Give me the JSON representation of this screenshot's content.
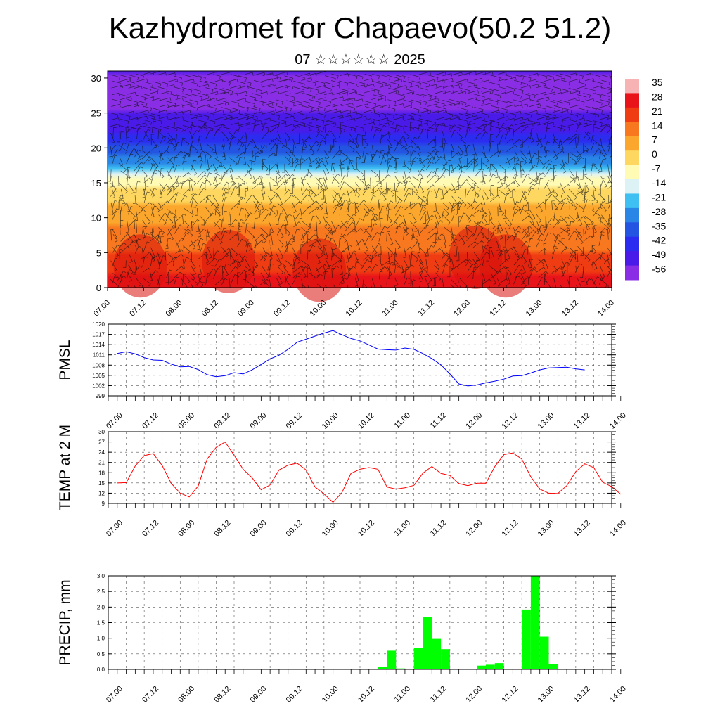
{
  "title": "Kazhydromet for Chapaevo(50.2 51.2)",
  "subtitle": "07 ☆☆☆☆☆☆ 2025",
  "chart_data": [
    {
      "type": "heatmap",
      "xlabel": "",
      "ylabel": "",
      "ylim": [
        0,
        31
      ],
      "yticks": [
        0,
        5,
        10,
        15,
        20,
        25,
        30
      ],
      "xtick_labels": [
        "07.00",
        "07.12",
        "08.00",
        "08.12",
        "09.00",
        "09.12",
        "10.00",
        "10.12",
        "11.00",
        "11.12",
        "12.00",
        "12.12",
        "13.00",
        "13.12",
        "14.00"
      ],
      "colorbar": {
        "labels": [
          "35",
          "28",
          "21",
          "14",
          "7",
          "0",
          "-7",
          "-14",
          "-21",
          "-28",
          "-35",
          "-42",
          "-49",
          "-56"
        ],
        "colors": [
          "#f7b3b3",
          "#e8141a",
          "#f03c12",
          "#f7781e",
          "#fba62c",
          "#fdd760",
          "#fffbb4",
          "#ddf2f5",
          "#3fc0f2",
          "#2a86e6",
          "#2454e2",
          "#2c2cf0",
          "#4a1ae8",
          "#8a2ee6"
        ]
      },
      "temperature_profile_by_level": [
        {
          "level": 0,
          "temp": 28
        },
        {
          "level": 5,
          "temp": 18
        },
        {
          "level": 10,
          "temp": 8
        },
        {
          "level": 15,
          "temp": -5
        },
        {
          "level": 17,
          "temp": -22
        },
        {
          "level": 20,
          "temp": -35
        },
        {
          "level": 23,
          "temp": -48
        },
        {
          "level": 27,
          "temp": -56
        },
        {
          "level": 31,
          "temp": -52
        }
      ],
      "wind_barbs": true
    },
    {
      "type": "line",
      "ylabel": "PMSL",
      "ylim": [
        999,
        1020
      ],
      "yticks": [
        999,
        1002,
        1005,
        1008,
        1011,
        1014,
        1017,
        1020
      ],
      "xtick_labels": [
        "07.00",
        "07.12",
        "08.00",
        "08.12",
        "09.00",
        "09.12",
        "10.00",
        "10.12",
        "11.00",
        "11.12",
        "12.00",
        "12.12",
        "13.00",
        "13.12",
        "14.00"
      ],
      "x_step_hours": 3,
      "series": [
        {
          "color": "#0000ff",
          "values": [
            1011.4,
            1011.9,
            1011.3,
            1010.2,
            1009.5,
            1009.4,
            1008.3,
            1007.5,
            1007.6,
            1006.7,
            1005.2,
            1004.6,
            1004.9,
            1005.8,
            1005.4,
            1006.6,
            1008.2,
            1009.8,
            1010.9,
            1012.6,
            1014.7,
            1015.6,
            1016.5,
            1017.4,
            1018.1,
            1016.9,
            1015.8,
            1015.1,
            1013.9,
            1012.7,
            1012.5,
            1012.4,
            1013.0,
            1012.6,
            1011.4,
            1009.9,
            1008.1,
            1005.4,
            1002.5,
            1001.9,
            1002.2,
            1002.8,
            1003.3,
            1003.9,
            1004.8,
            1004.9,
            1005.7,
            1006.6,
            1007.2,
            1007.3,
            1007.4,
            1006.9,
            1006.6
          ]
        }
      ]
    },
    {
      "type": "line",
      "ylabel": "TEMP at 2 M",
      "ylim": [
        9,
        30
      ],
      "yticks": [
        9,
        12,
        15,
        18,
        21,
        24,
        27,
        30
      ],
      "xtick_labels": [
        "07.00",
        "07.12",
        "08.00",
        "08.12",
        "09.00",
        "09.12",
        "10.00",
        "10.12",
        "11.00",
        "11.12",
        "12.00",
        "12.12",
        "13.00",
        "13.12",
        "14.00"
      ],
      "x_step_hours": 3,
      "series": [
        {
          "color": "#ff0000",
          "values": [
            15.0,
            15.1,
            20.0,
            23.0,
            23.6,
            20.1,
            14.9,
            12.0,
            10.9,
            14.1,
            22.0,
            25.4,
            27.0,
            23.1,
            19.0,
            16.5,
            13.0,
            14.4,
            18.8,
            20.2,
            20.8,
            18.8,
            13.8,
            11.8,
            9.3,
            12.2,
            17.8,
            19.0,
            19.5,
            19.0,
            13.8,
            13.2,
            13.6,
            14.3,
            17.9,
            19.8,
            17.8,
            17.2,
            14.8,
            14.2,
            14.9,
            14.9,
            19.8,
            23.3,
            23.8,
            22.0,
            16.8,
            13.2,
            12.0,
            11.9,
            14.2,
            18.3,
            20.6,
            19.5,
            15.2,
            13.9,
            11.7
          ]
        }
      ]
    },
    {
      "type": "bar",
      "ylabel": "PRECIP, mm",
      "ylim": [
        0,
        3.0
      ],
      "yticks": [
        "0.0",
        "0.5",
        "1.0",
        "1.5",
        "2.0",
        "2.5",
        "3.0"
      ],
      "xtick_labels": [
        "07.00",
        "07.12",
        "08.00",
        "08.12",
        "09.00",
        "09.12",
        "10.00",
        "10.12",
        "11.00",
        "11.12",
        "12.00",
        "12.12",
        "13.00",
        "13.12",
        "14.00"
      ],
      "x_step_hours": 3,
      "color": "#00ff00",
      "values": [
        0,
        0,
        0,
        0,
        0,
        0,
        0,
        0,
        0,
        0,
        0,
        0,
        0.02,
        0.02,
        0,
        0,
        0,
        0,
        0,
        0,
        0,
        0,
        0,
        0,
        0,
        0,
        0.01,
        0,
        0,
        0,
        0.08,
        0.6,
        0.03,
        0,
        0.7,
        1.68,
        0.98,
        0.65,
        0,
        0,
        0,
        0.12,
        0.15,
        0.2,
        0,
        0,
        1.92,
        3.0,
        1.05,
        0.18,
        0,
        0,
        0,
        0,
        0,
        0,
        0.02
      ]
    }
  ]
}
